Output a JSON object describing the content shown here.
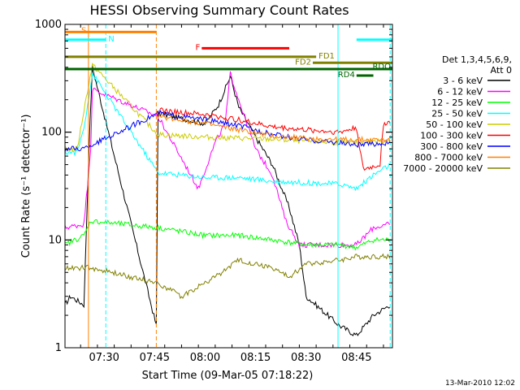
{
  "chart_data": {
    "type": "line",
    "title": "HESSI Observing Summary Count Rates",
    "xlabel": "Start Time (09-Mar-05 07:18:22)",
    "ylabel": "Count Rate (s⁻¹ detector⁻¹)",
    "y_scale": "log",
    "ylim": [
      1,
      1000
    ],
    "xlim": [
      "07:18:22",
      "08:55:40"
    ],
    "x_ticks": [
      "07:30",
      "07:45",
      "08:00",
      "08:15",
      "08:30",
      "08:45"
    ],
    "y_ticks": [
      "1",
      "10",
      "100",
      "1000"
    ],
    "grid": false,
    "legend_position": "right",
    "legend_title": [
      "Det 1,3,4,5,6,9,",
      "Att 0"
    ],
    "footer_date": "13-Mar-2010 12:02",
    "series": [
      {
        "name": "3 - 6 keV",
        "color": "#000000",
        "points": [
          [
            "07:18:22",
            2.5
          ],
          [
            "07:20:00",
            3
          ],
          [
            "07:24:00",
            2.5
          ],
          [
            "07:25:30",
            70
          ],
          [
            "07:26:30",
            400
          ],
          [
            "07:45:30",
            1.6
          ],
          [
            "07:46:00",
            150
          ],
          [
            "08:00:00",
            120
          ],
          [
            "08:04:00",
            180
          ],
          [
            "08:07:30",
            330
          ],
          [
            "08:10:00",
            170
          ],
          [
            "08:15:00",
            90
          ],
          [
            "08:20:00",
            50
          ],
          [
            "08:25:00",
            20
          ],
          [
            "08:28:00",
            9
          ],
          [
            "08:30:00",
            3
          ],
          [
            "08:40:00",
            1.6
          ],
          [
            "08:45:00",
            1.3
          ],
          [
            "08:50:00",
            2
          ],
          [
            "08:55:00",
            2.5
          ]
        ]
      },
      {
        "name": "6 - 12 keV",
        "color": "#ff00ff",
        "points": [
          [
            "07:18:22",
            13
          ],
          [
            "07:24:00",
            14
          ],
          [
            "07:26:00",
            70
          ],
          [
            "07:26:30",
            250
          ],
          [
            "07:46:00",
            140
          ],
          [
            "07:58:00",
            30
          ],
          [
            "08:03:00",
            80
          ],
          [
            "08:06:00",
            120
          ],
          [
            "08:07:30",
            350
          ],
          [
            "08:10:00",
            200
          ],
          [
            "08:15:00",
            70
          ],
          [
            "08:20:00",
            40
          ],
          [
            "08:24:00",
            15
          ],
          [
            "08:28:00",
            9
          ],
          [
            "08:40:00",
            9
          ],
          [
            "08:45:00",
            9
          ],
          [
            "08:50:00",
            13
          ],
          [
            "08:55:00",
            14
          ]
        ]
      },
      {
        "name": "12 - 25 keV",
        "color": "#00ff00",
        "points": [
          [
            "07:18:22",
            9
          ],
          [
            "07:24:00",
            11
          ],
          [
            "07:26:00",
            15
          ],
          [
            "07:46:00",
            13
          ],
          [
            "08:00:00",
            11
          ],
          [
            "08:10:00",
            11
          ],
          [
            "08:20:00",
            10
          ],
          [
            "08:30:00",
            9
          ],
          [
            "08:40:00",
            9
          ],
          [
            "08:45:00",
            8.5
          ],
          [
            "08:50:00",
            10
          ],
          [
            "08:55:00",
            10
          ]
        ]
      },
      {
        "name": "25 - 50 keV",
        "color": "#00ffff",
        "points": [
          [
            "07:18:22",
            65
          ],
          [
            "07:22:00",
            65
          ],
          [
            "07:24:00",
            110
          ],
          [
            "07:26:30",
            350
          ],
          [
            "07:46:00",
            42
          ],
          [
            "08:00:00",
            38
          ],
          [
            "08:10:00",
            38
          ],
          [
            "08:20:00",
            35
          ],
          [
            "08:30:00",
            34
          ],
          [
            "08:40:00",
            33
          ],
          [
            "08:45:00",
            30
          ],
          [
            "08:50:00",
            40
          ],
          [
            "08:55:00",
            50
          ]
        ]
      },
      {
        "name": "50 - 100 keV",
        "color": "#cccc00",
        "points": [
          [
            "07:18:22",
            70
          ],
          [
            "07:22:00",
            70
          ],
          [
            "07:24:00",
            160
          ],
          [
            "07:26:30",
            420
          ],
          [
            "07:46:00",
            95
          ],
          [
            "08:00:00",
            90
          ],
          [
            "08:10:00",
            88
          ],
          [
            "08:20:00",
            86
          ],
          [
            "08:30:00",
            82
          ],
          [
            "08:40:00",
            80
          ],
          [
            "08:45:00",
            80
          ],
          [
            "08:50:00",
            82
          ],
          [
            "08:55:00",
            85
          ]
        ]
      },
      {
        "name": "100 - 300 keV",
        "color": "#ff0000",
        "points": [
          [
            "07:46:00",
            160
          ],
          [
            "08:00:00",
            145
          ],
          [
            "08:10:00",
            130
          ],
          [
            "08:20:00",
            112
          ],
          [
            "08:30:00",
            105
          ],
          [
            "08:40:00",
            100
          ],
          [
            "08:45:00",
            110
          ],
          [
            "08:47:00",
            45
          ],
          [
            "08:52:00",
            50
          ],
          [
            "08:53:00",
            120
          ],
          [
            "08:55:00",
            125
          ]
        ]
      },
      {
        "name": "300 - 800 keV",
        "color": "#0000ff",
        "points": [
          [
            "07:18:22",
            70
          ],
          [
            "07:24:00",
            70
          ],
          [
            "07:46:00",
            150
          ],
          [
            "08:00:00",
            130
          ],
          [
            "08:10:00",
            115
          ],
          [
            "08:20:00",
            95
          ],
          [
            "08:30:00",
            85
          ],
          [
            "08:40:00",
            80
          ],
          [
            "08:45:00",
            76
          ],
          [
            "08:55:00",
            80
          ]
        ]
      },
      {
        "name": "800 - 7000 keV",
        "color": "#ff8000",
        "points": [
          [
            "07:46:00",
            140
          ],
          [
            "08:00:00",
            120
          ],
          [
            "08:10:00",
            105
          ],
          [
            "08:20:00",
            92
          ],
          [
            "08:30:00",
            88
          ],
          [
            "08:40:00",
            85
          ],
          [
            "08:47:00",
            85
          ],
          [
            "08:55:00",
            85
          ]
        ]
      },
      {
        "name": "7000 - 20000 keV",
        "color": "#808000",
        "points": [
          [
            "07:18:22",
            5.5
          ],
          [
            "07:26:00",
            5.5
          ],
          [
            "07:46:00",
            4
          ],
          [
            "07:53:00",
            3
          ],
          [
            "08:00:00",
            4
          ],
          [
            "08:05:00",
            5
          ],
          [
            "08:10:00",
            6.5
          ],
          [
            "08:20:00",
            5.5
          ],
          [
            "08:25:00",
            4.5
          ],
          [
            "08:30:00",
            6
          ],
          [
            "08:40:00",
            6.5
          ],
          [
            "08:45:00",
            7
          ],
          [
            "08:50:00",
            7
          ],
          [
            "08:55:00",
            7
          ]
        ]
      }
    ],
    "interval_bars": [
      {
        "label": "S",
        "color": "#ff8000",
        "start": "07:18:22",
        "end": "07:45:30",
        "level": 850,
        "label_side": "left"
      },
      {
        "label": "N",
        "color": "#00ffff",
        "start": "07:18:22",
        "end": "07:30:30",
        "level": 720,
        "label_side": "right"
      },
      {
        "label": "N",
        "color": "#00ffff",
        "start": "08:45:00",
        "end": "08:55:40",
        "level": 720,
        "label_side": "none"
      },
      {
        "label": "F",
        "color": "#ff0000",
        "start": "07:59:00",
        "end": "08:25:00",
        "level": 600,
        "label_side": "left"
      },
      {
        "label": "FD1",
        "color": "#808000",
        "start": "07:18:22",
        "end": "08:33:00",
        "level": 500,
        "label_side": "right"
      },
      {
        "label": "FD2",
        "color": "#808000",
        "start": "08:32:00",
        "end": "08:55:40",
        "level": 440,
        "label_side": "left"
      },
      {
        "label": "RDO",
        "color": "#006400",
        "start": "07:18:22",
        "end": "08:55:40",
        "level": 385,
        "label_side": "end"
      },
      {
        "label": "RD4",
        "color": "#006400",
        "start": "08:45:00",
        "end": "08:50:00",
        "level": 335,
        "label_side": "left"
      }
    ],
    "vertical_markers": [
      {
        "time": "07:25:20",
        "color": "#ff8000",
        "style": "solid"
      },
      {
        "time": "07:45:30",
        "color": "#ff8000",
        "style": "dashed"
      },
      {
        "time": "07:30:30",
        "color": "#00ffff",
        "style": "dashed"
      },
      {
        "time": "08:39:30",
        "color": "#00ffff",
        "style": "solid"
      },
      {
        "time": "08:55:00",
        "color": "#00ffff",
        "style": "dashed"
      }
    ]
  }
}
